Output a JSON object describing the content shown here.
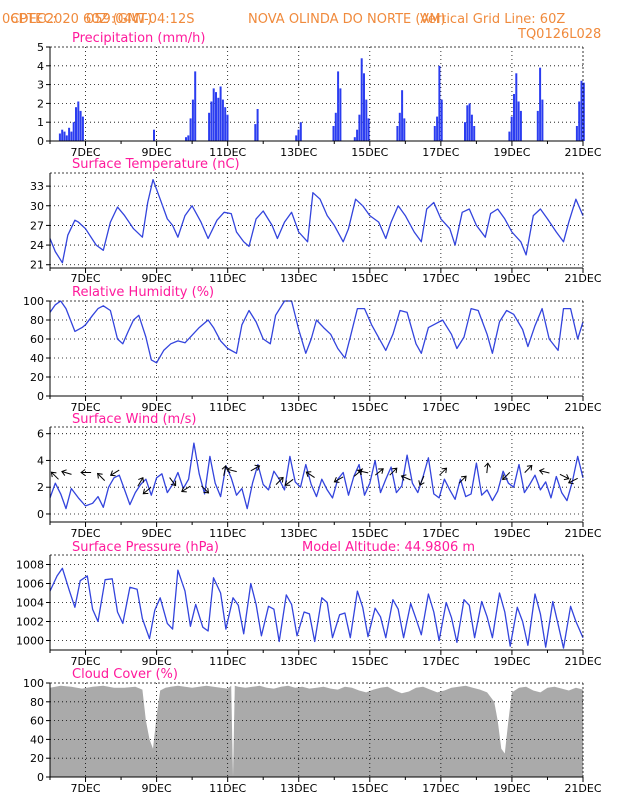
{
  "header": {
    "source": "CPTEC:",
    "coordinates": "059:04W-04:12S",
    "location": "NOVA OLINDA DO NORTE (AM)",
    "date": "06DEC2020 60Z (GMT)",
    "grid_info": "Vertical Grid Line: 60Z",
    "model": "TQ0126L028"
  },
  "colors": {
    "header": "#f08a3c",
    "title": "#ff1a9c",
    "line": "#3344dd",
    "bar": "#2b3df0",
    "cloud": "#aaaaaa",
    "arrow": "#000000"
  },
  "x_axis": {
    "start": "06DEC2020 00Z",
    "end": "21DEC2020 00Z",
    "tick_labels": [
      "7DEC",
      "9DEC",
      "11DEC",
      "13DEC",
      "15DEC",
      "17DEC",
      "19DEC",
      "21DEC"
    ],
    "tick_days": [
      7,
      9,
      11,
      13,
      15,
      17,
      19,
      21
    ]
  },
  "chart_data": [
    {
      "id": "precipitation",
      "type": "bar",
      "title": "Precipitation (mm/h)",
      "ylim": [
        0,
        5
      ],
      "yticks": [
        0,
        1,
        2,
        3,
        4,
        5
      ],
      "grid": true,
      "events": [
        {
          "day": 6.25,
          "vals": [
            0.4,
            0.6,
            0.5,
            0.3,
            0.7,
            0.5,
            1.0,
            1.8,
            2.1,
            1.6,
            1.3
          ]
        },
        {
          "day": 8.9,
          "vals": [
            0.6
          ]
        },
        {
          "day": 9.8,
          "vals": [
            0.2,
            0.3,
            1.2,
            2.2,
            3.7
          ]
        },
        {
          "day": 10.45,
          "vals": [
            1.5,
            2.1,
            2.8,
            2.6,
            2.3,
            2.9,
            2.2,
            1.8,
            1.4
          ]
        },
        {
          "day": 11.75,
          "vals": [
            0.9,
            1.7
          ]
        },
        {
          "day": 12.9,
          "vals": [
            0.3,
            0.6,
            1.0
          ]
        },
        {
          "day": 13.95,
          "vals": [
            0.8,
            1.5,
            3.7,
            2.8
          ]
        },
        {
          "day": 14.55,
          "vals": [
            0.2,
            0.6,
            1.4,
            4.4,
            3.6,
            2.2,
            1.2
          ]
        },
        {
          "day": 15.75,
          "vals": [
            0.8,
            1.5,
            2.7,
            1.2
          ]
        },
        {
          "day": 16.8,
          "vals": [
            0.8,
            1.3,
            4.0,
            2.2
          ]
        },
        {
          "day": 17.65,
          "vals": [
            1.0,
            1.9,
            2.0,
            1.4,
            0.8
          ]
        },
        {
          "day": 18.9,
          "vals": [
            0.5,
            1.3,
            2.5,
            3.6,
            2.1,
            1.6
          ]
        },
        {
          "day": 19.7,
          "vals": [
            1.6,
            3.9,
            2.2
          ]
        },
        {
          "day": 20.8,
          "vals": [
            0.8,
            2.1,
            3.2,
            3.1
          ]
        }
      ]
    },
    {
      "id": "temperature",
      "type": "line",
      "title": "Surface Temperature (nC)",
      "ylim": [
        20.5,
        35
      ],
      "yticks": [
        21,
        24,
        27,
        30,
        33
      ],
      "grid": true,
      "x": [
        6.0,
        6.15,
        6.35,
        6.5,
        6.7,
        6.8,
        7.0,
        7.3,
        7.5,
        7.7,
        7.9,
        8.1,
        8.35,
        8.6,
        8.75,
        8.9,
        9.1,
        9.3,
        9.45,
        9.6,
        9.8,
        10.0,
        10.25,
        10.45,
        10.7,
        10.9,
        11.1,
        11.25,
        11.45,
        11.6,
        11.8,
        12.0,
        12.25,
        12.4,
        12.6,
        12.8,
        13.0,
        13.25,
        13.4,
        13.6,
        13.8,
        14.0,
        14.25,
        14.4,
        14.6,
        14.8,
        15.0,
        15.25,
        15.45,
        15.6,
        15.8,
        16.0,
        16.25,
        16.45,
        16.6,
        16.8,
        17.0,
        17.25,
        17.4,
        17.6,
        17.8,
        18.0,
        18.25,
        18.4,
        18.6,
        18.8,
        19.0,
        19.25,
        19.4,
        19.6,
        19.8,
        20.0,
        20.25,
        20.45,
        20.6,
        20.8,
        21.0
      ],
      "y": [
        25.0,
        23.0,
        21.3,
        25.5,
        27.8,
        27.5,
        26.5,
        24.0,
        23.2,
        27.5,
        29.8,
        28.5,
        26.5,
        25.2,
        30.5,
        34.0,
        31.0,
        28.0,
        27.0,
        25.2,
        28.5,
        30.0,
        27.5,
        25.0,
        27.8,
        29.0,
        28.8,
        26.0,
        24.5,
        23.8,
        28.0,
        29.2,
        27.0,
        25.0,
        27.5,
        29.0,
        26.0,
        24.5,
        32.0,
        31.0,
        28.5,
        27.0,
        24.5,
        26.5,
        31.0,
        30.0,
        28.5,
        27.5,
        25.0,
        27.5,
        30.0,
        28.5,
        26.0,
        24.5,
        29.5,
        30.5,
        28.0,
        26.5,
        24.0,
        29.0,
        29.5,
        27.0,
        25.2,
        28.8,
        29.5,
        28.0,
        26.0,
        24.5,
        22.5,
        28.5,
        29.5,
        28.0,
        26.0,
        24.5,
        27.5,
        31.0,
        28.5
      ]
    },
    {
      "id": "humidity",
      "type": "line",
      "title": "Relative Humidity (%)",
      "ylim": [
        0,
        100
      ],
      "yticks": [
        0,
        20,
        40,
        60,
        80,
        100
      ],
      "grid": true,
      "x": [
        6.0,
        6.15,
        6.3,
        6.45,
        6.7,
        6.9,
        7.0,
        7.2,
        7.35,
        7.5,
        7.7,
        7.9,
        8.05,
        8.2,
        8.35,
        8.5,
        8.7,
        8.85,
        9.0,
        9.2,
        9.4,
        9.6,
        9.8,
        10.0,
        10.2,
        10.45,
        10.6,
        10.8,
        11.0,
        11.25,
        11.4,
        11.6,
        11.8,
        12.0,
        12.2,
        12.35,
        12.6,
        12.8,
        13.0,
        13.2,
        13.35,
        13.5,
        13.7,
        13.9,
        14.1,
        14.3,
        14.45,
        14.65,
        14.85,
        15.05,
        15.3,
        15.45,
        15.65,
        15.85,
        16.05,
        16.3,
        16.45,
        16.65,
        16.85,
        17.05,
        17.3,
        17.45,
        17.65,
        17.85,
        18.05,
        18.3,
        18.45,
        18.65,
        18.85,
        19.05,
        19.3,
        19.45,
        19.65,
        19.85,
        20.05,
        20.3,
        20.45,
        20.65,
        20.85,
        21.0
      ],
      "y": [
        88,
        96,
        100,
        92,
        68,
        72,
        75,
        85,
        92,
        95,
        90,
        60,
        55,
        68,
        80,
        85,
        62,
        38,
        35,
        48,
        55,
        58,
        56,
        64,
        72,
        80,
        72,
        58,
        50,
        45,
        75,
        90,
        78,
        60,
        55,
        85,
        100,
        100,
        70,
        45,
        60,
        80,
        72,
        65,
        50,
        40,
        62,
        92,
        92,
        75,
        58,
        48,
        65,
        90,
        88,
        55,
        45,
        72,
        76,
        80,
        65,
        50,
        62,
        92,
        90,
        65,
        45,
        78,
        90,
        86,
        70,
        52,
        74,
        92,
        60,
        48,
        92,
        92,
        60,
        78
      ]
    },
    {
      "id": "wind",
      "type": "line",
      "title": "Surface Wind (m/s)",
      "ylim": [
        -0.6,
        6.5
      ],
      "yticks": [
        0,
        2,
        4,
        6
      ],
      "grid": true,
      "x": [
        6.0,
        6.15,
        6.3,
        6.45,
        6.6,
        6.8,
        7.0,
        7.2,
        7.35,
        7.5,
        7.65,
        7.8,
        7.95,
        8.1,
        8.25,
        8.4,
        8.55,
        8.7,
        8.85,
        9.0,
        9.15,
        9.3,
        9.45,
        9.6,
        9.75,
        9.9,
        10.05,
        10.2,
        10.35,
        10.5,
        10.65,
        10.8,
        10.95,
        11.1,
        11.25,
        11.4,
        11.55,
        11.7,
        11.85,
        12.0,
        12.15,
        12.3,
        12.45,
        12.6,
        12.75,
        12.9,
        13.05,
        13.2,
        13.35,
        13.5,
        13.65,
        13.8,
        13.95,
        14.1,
        14.25,
        14.4,
        14.55,
        14.7,
        14.85,
        15.0,
        15.15,
        15.3,
        15.45,
        15.6,
        15.75,
        15.9,
        16.05,
        16.2,
        16.35,
        16.5,
        16.65,
        16.8,
        16.95,
        17.1,
        17.25,
        17.4,
        17.55,
        17.7,
        17.85,
        18.0,
        18.15,
        18.3,
        18.45,
        18.6,
        18.75,
        18.9,
        19.05,
        19.2,
        19.35,
        19.5,
        19.65,
        19.8,
        19.95,
        20.1,
        20.25,
        20.4,
        20.55,
        20.7,
        20.85,
        21.0
      ],
      "y": [
        1.2,
        2.3,
        1.5,
        0.4,
        1.9,
        1.2,
        0.6,
        0.8,
        1.3,
        0.5,
        2.0,
        2.7,
        2.9,
        1.8,
        0.7,
        1.6,
        2.2,
        2.6,
        1.4,
        2.7,
        3.0,
        1.6,
        2.2,
        3.1,
        1.9,
        2.6,
        5.3,
        3.0,
        1.5,
        4.3,
        2.3,
        1.3,
        3.6,
        2.7,
        1.4,
        1.9,
        0.4,
        2.3,
        3.7,
        2.2,
        1.8,
        3.2,
        2.6,
        1.8,
        4.3,
        2.4,
        2.0,
        3.7,
        2.2,
        1.3,
        2.6,
        1.8,
        1.2,
        2.6,
        3.1,
        1.4,
        2.8,
        3.7,
        1.4,
        2.3,
        4.0,
        1.6,
        2.6,
        3.5,
        1.6,
        2.1,
        4.4,
        2.3,
        1.6,
        2.8,
        4.2,
        1.5,
        1.2,
        2.6,
        1.8,
        1.1,
        2.6,
        1.3,
        1.5,
        3.8,
        1.4,
        1.8,
        1.0,
        1.7,
        3.2,
        2.3,
        2.0,
        3.7,
        1.6,
        2.2,
        2.9,
        1.8,
        2.4,
        1.2,
        2.8,
        1.6,
        1.0,
        2.4,
        4.3,
        2.7
      ],
      "arrows": [
        {
          "day": 6.2,
          "speed": 2.7,
          "dx": -1,
          "dy": 1
        },
        {
          "day": 6.55,
          "speed": 3.0,
          "dx": -1,
          "dy": 0.3
        },
        {
          "day": 7.1,
          "speed": 3.1,
          "dx": -1,
          "dy": 0
        },
        {
          "day": 7.5,
          "speed": 2.6,
          "dx": -0.6,
          "dy": 0.6
        },
        {
          "day": 7.9,
          "speed": 3.2,
          "dx": -1,
          "dy": -0.6
        },
        {
          "day": 8.5,
          "speed": 2.2,
          "dx": 0.6,
          "dy": 1
        },
        {
          "day": 8.8,
          "speed": 1.9,
          "dx": -0.6,
          "dy": -0.5
        },
        {
          "day": 9.4,
          "speed": 2.6,
          "dx": 0.6,
          "dy": -0.8
        },
        {
          "day": 9.9,
          "speed": 2.0,
          "dx": -0.8,
          "dy": -0.5
        },
        {
          "day": 10.3,
          "speed": 2.0,
          "dx": 0.6,
          "dy": -0.6
        },
        {
          "day": 10.9,
          "speed": 3.0,
          "dx": 0.2,
          "dy": 1
        },
        {
          "day": 11.2,
          "speed": 3.2,
          "dx": -0.8,
          "dy": 0.2
        },
        {
          "day": 11.7,
          "speed": 3.3,
          "dx": 0.9,
          "dy": 0.5
        },
        {
          "day": 12.4,
          "speed": 2.3,
          "dx": 0.6,
          "dy": 0.6
        },
        {
          "day": 12.8,
          "speed": 2.5,
          "dx": -0.8,
          "dy": -0.6
        },
        {
          "day": 13.4,
          "speed": 2.8,
          "dx": -0.6,
          "dy": 0.4
        },
        {
          "day": 14.2,
          "speed": 2.7,
          "dx": -0.7,
          "dy": -0.4
        },
        {
          "day": 14.6,
          "speed": 2.9,
          "dx": 0.6,
          "dy": 0.5
        },
        {
          "day": 14.9,
          "speed": 3.1,
          "dx": -0.9,
          "dy": 0.2
        },
        {
          "day": 15.2,
          "speed": 3.0,
          "dx": 0.5,
          "dy": 0.4
        },
        {
          "day": 15.6,
          "speed": 3.0,
          "dx": 0.6,
          "dy": 0.6
        },
        {
          "day": 16.1,
          "speed": 2.6,
          "dx": -0.7,
          "dy": 0.3
        },
        {
          "day": 16.5,
          "speed": 2.7,
          "dx": -0.3,
          "dy": -0.7
        },
        {
          "day": 17.0,
          "speed": 3.0,
          "dx": 0.2,
          "dy": 0.2
        },
        {
          "day": 17.55,
          "speed": 2.4,
          "dx": 0.6,
          "dy": 0.6
        },
        {
          "day": 18.3,
          "speed": 3.2,
          "dx": 0.1,
          "dy": 0.9
        },
        {
          "day": 18.9,
          "speed": 3.0,
          "dx": -0.6,
          "dy": -0.6
        },
        {
          "day": 19.4,
          "speed": 3.2,
          "dx": 0.5,
          "dy": 0.5
        },
        {
          "day": 20.0,
          "speed": 3.1,
          "dx": -0.8,
          "dy": 0.2
        },
        {
          "day": 20.4,
          "speed": 2.9,
          "dx": 0.6,
          "dy": -0.3
        },
        {
          "day": 20.8,
          "speed": 2.6,
          "dx": -0.8,
          "dy": -0.4
        }
      ]
    },
    {
      "id": "pressure",
      "type": "line",
      "title": "Surface Pressure (hPa)",
      "annotation": "Model Altitude: 44.9806 m",
      "ylim": [
        999,
        1009
      ],
      "yticks": [
        1000,
        1002,
        1004,
        1006,
        1008
      ],
      "grid": true,
      "x": [
        6.0,
        6.2,
        6.35,
        6.55,
        6.7,
        6.85,
        7.05,
        7.2,
        7.35,
        7.55,
        7.75,
        7.9,
        8.05,
        8.25,
        8.45,
        8.6,
        8.8,
        8.95,
        9.1,
        9.3,
        9.45,
        9.6,
        9.8,
        9.95,
        10.1,
        10.3,
        10.45,
        10.6,
        10.8,
        10.95,
        11.15,
        11.3,
        11.45,
        11.65,
        11.8,
        11.95,
        12.15,
        12.3,
        12.45,
        12.65,
        12.8,
        12.95,
        13.15,
        13.3,
        13.45,
        13.65,
        13.8,
        13.95,
        14.15,
        14.3,
        14.45,
        14.65,
        14.8,
        14.95,
        15.15,
        15.3,
        15.45,
        15.65,
        15.8,
        15.95,
        16.15,
        16.3,
        16.45,
        16.65,
        16.8,
        16.95,
        17.15,
        17.3,
        17.45,
        17.65,
        17.8,
        17.95,
        18.15,
        18.3,
        18.45,
        18.65,
        18.8,
        18.95,
        19.15,
        19.3,
        19.45,
        19.65,
        19.8,
        19.95,
        20.15,
        20.3,
        20.45,
        20.65,
        20.8,
        21.0
      ],
      "y": [
        1005.2,
        1006.8,
        1007.6,
        1005.2,
        1003.5,
        1006.3,
        1006.8,
        1003.3,
        1002.0,
        1006.4,
        1006.5,
        1003.0,
        1001.8,
        1005.6,
        1005.4,
        1002.3,
        1000.2,
        1003.2,
        1004.5,
        1001.8,
        1001.2,
        1007.4,
        1005.2,
        1001.5,
        1003.8,
        1001.4,
        1001.0,
        1006.6,
        1005.0,
        1001.2,
        1004.5,
        1003.7,
        1000.7,
        1006.0,
        1003.8,
        1000.5,
        1003.6,
        1003.3,
        999.9,
        1004.8,
        1003.8,
        1000.5,
        1003.0,
        1002.8,
        999.9,
        1004.5,
        1004.0,
        1000.3,
        1002.7,
        1002.9,
        1000.3,
        1005.2,
        1003.5,
        1000.4,
        1003.4,
        1002.5,
        1000.3,
        1004.3,
        1003.3,
        1000.3,
        1003.9,
        1002.3,
        1000.6,
        1004.9,
        1003.0,
        1000.0,
        1004.0,
        1002.4,
        999.8,
        1004.3,
        1003.7,
        1000.3,
        1004.1,
        1002.5,
        1000.3,
        1005.0,
        1003.0,
        999.4,
        1003.5,
        1002.0,
        999.5,
        1004.9,
        1002.8,
        999.3,
        1004.1,
        1001.7,
        999.2,
        1003.6,
        1002.0,
        1000.3
      ]
    },
    {
      "id": "cloud",
      "type": "area",
      "title": "Cloud Cover (%)",
      "ylim": [
        0,
        100
      ],
      "yticks": [
        0,
        20,
        40,
        60,
        80,
        100
      ],
      "grid": true,
      "x": [
        6.0,
        6.3,
        6.6,
        6.9,
        7.2,
        7.5,
        7.8,
        8.1,
        8.4,
        8.6,
        8.7,
        8.8,
        8.9,
        9.0,
        9.1,
        9.25,
        9.4,
        9.6,
        9.8,
        10.0,
        10.2,
        10.4,
        10.6,
        10.8,
        11.0,
        11.1,
        11.15,
        11.2,
        11.3,
        11.5,
        11.7,
        11.9,
        12.1,
        12.3,
        12.5,
        12.7,
        12.9,
        13.1,
        13.3,
        13.5,
        13.7,
        13.9,
        14.1,
        14.3,
        14.5,
        14.7,
        14.9,
        15.1,
        15.3,
        15.5,
        15.7,
        15.9,
        16.1,
        16.3,
        16.5,
        16.7,
        16.9,
        17.1,
        17.3,
        17.5,
        17.7,
        17.9,
        18.1,
        18.3,
        18.5,
        18.6,
        18.7,
        18.8,
        18.9,
        19.0,
        19.2,
        19.4,
        19.6,
        19.8,
        20.0,
        20.2,
        20.4,
        20.6,
        20.8,
        21.0
      ],
      "y": [
        95,
        97,
        96,
        94,
        96,
        97,
        95,
        95,
        96,
        93,
        60,
        40,
        30,
        65,
        92,
        95,
        96,
        97,
        96,
        95,
        96,
        97,
        96,
        95,
        94,
        97,
        0,
        97,
        96,
        95,
        96,
        97,
        95,
        94,
        96,
        97,
        95,
        96,
        94,
        95,
        96,
        94,
        93,
        96,
        95,
        92,
        90,
        93,
        95,
        96,
        92,
        89,
        91,
        95,
        96,
        93,
        90,
        92,
        95,
        96,
        97,
        95,
        93,
        90,
        80,
        60,
        30,
        25,
        60,
        90,
        95,
        96,
        92,
        90,
        95,
        96,
        94,
        92,
        95,
        93
      ]
    }
  ]
}
